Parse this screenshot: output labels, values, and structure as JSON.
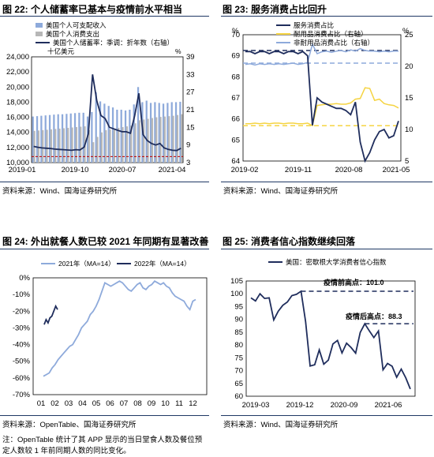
{
  "figures": [
    {
      "label": "图 22:",
      "title": "个人储蓄率已基本与疫情前水平相当",
      "source": "资料来源：Wind、国海证券研究所"
    },
    {
      "label": "图 23:",
      "title": "服务消费占比回升",
      "source": "资料来源：Wind、国海证券研究所"
    },
    {
      "label": "图 24:",
      "title": "外出就餐人数已较 2021 年同期有显著改善",
      "source": "资料来源：OpenTable、国海证券研究所"
    },
    {
      "label": "图 25:",
      "title": "消费者信心指数继续回落",
      "source": "资料来源：Wind、国海证券研究所"
    }
  ],
  "footnote": "注：OpenTable 统计了其 APP 显示的当日堂食人数及餐位预定人数较 1 年前同期人数的同比变化。",
  "colors": {
    "navy": "#1f2d5c",
    "light_blue": "#8eaadb",
    "gray": "#b7b7b7",
    "dashed": "#8eaadb",
    "yellow": "#f5d442",
    "red_dash": "#c00000"
  },
  "chart_data": [
    {
      "type": "bar",
      "title": "个人储蓄率已基本与疫情前水平相当",
      "unit_left": "十亿美元",
      "unit_right": "%",
      "ylim": [
        10000,
        24000
      ],
      "y2lim": [
        3,
        39
      ],
      "yticks": [
        "10,000",
        "12,000",
        "14,000",
        "16,000",
        "18,000",
        "20,000",
        "22,000",
        "24,000"
      ],
      "y2ticks": [
        "3",
        "9",
        "15",
        "21",
        "27",
        "33",
        "39"
      ],
      "xticks": [
        "2019-01",
        "2019-10",
        "2020-07",
        "2021-04"
      ],
      "series": [
        {
          "name": "美国个人可支配收入",
          "values": [
            16100,
            16150,
            16200,
            16250,
            16300,
            16350,
            16400,
            16400,
            16450,
            16500,
            16550,
            16600,
            16600,
            16100,
            16700,
            19300,
            18100,
            17800,
            17500,
            17300,
            17000,
            17000,
            16900,
            17000,
            17700,
            20000,
            18000,
            18200,
            17900,
            18000,
            17900,
            17800,
            17900,
            18000,
            18000,
            18050
          ]
        },
        {
          "name": "美国个人消费支出",
          "values": [
            14200,
            14250,
            14300,
            14350,
            14400,
            14450,
            14500,
            14550,
            14600,
            14650,
            14700,
            14750,
            14800,
            14300,
            12700,
            13400,
            14000,
            14300,
            14400,
            14500,
            14600,
            14700,
            14800,
            14900,
            15200,
            15600,
            15700,
            15800,
            15900,
            16000,
            16050,
            16100,
            16150,
            16200,
            16300,
            16400
          ]
        },
        {
          "name": "美国个人储蓄率：季调：折年数（右轴）",
          "values": [
            8.5,
            8.2,
            8.0,
            7.9,
            7.8,
            7.6,
            7.5,
            7.4,
            7.3,
            7.2,
            7.4,
            7.3,
            8.3,
            12.8,
            33.0,
            24.0,
            19.0,
            18.0,
            15.0,
            14.5,
            14.0,
            13.5,
            13.5,
            13.0,
            19.0,
            26.6,
            12.5,
            10.5,
            9.5,
            9.0,
            9.5,
            8.0,
            7.5,
            7.2,
            7.1,
            7.9
          ]
        }
      ]
    },
    {
      "type": "line",
      "title": "服务消费占比回升",
      "unit_left": "%",
      "unit_right": "%",
      "ylim": [
        64,
        70
      ],
      "y2lim": [
        5,
        25
      ],
      "yticks": [
        "64",
        "65",
        "66",
        "67",
        "68",
        "69",
        "70"
      ],
      "y2ticks": [
        "5",
        "10",
        "15",
        "20",
        "25"
      ],
      "xticks": [
        "2019-02",
        "2019-11",
        "2020-08",
        "2021-05"
      ],
      "series": [
        {
          "name": "服务消费占比",
          "values": [
            69.2,
            69.2,
            69.1,
            69.2,
            69.2,
            69.1,
            69.2,
            69.2,
            69.1,
            69.2,
            69.2,
            69.1,
            69.2,
            69.0,
            65.7,
            67.0,
            66.8,
            66.7,
            66.6,
            66.5,
            66.5,
            66.4,
            66.2,
            66.8,
            64.9,
            64.0,
            64.4,
            65.0,
            65.4,
            65.5,
            65.1,
            65.2,
            65.9
          ]
        },
        {
          "name": "耐用品消费占比（右轴）",
          "values": [
            10.9,
            10.9,
            11.0,
            10.9,
            11.0,
            10.9,
            11.0,
            11.0,
            10.9,
            11.0,
            11.0,
            10.9,
            10.9,
            11.0,
            10.6,
            13.8,
            13.9,
            14.0,
            14.0,
            14.1,
            14.0,
            14.0,
            14.2,
            14.8,
            14.9,
            16.6,
            16.5,
            14.6,
            14.8,
            14.1,
            13.9,
            13.8,
            13.4
          ]
        },
        {
          "name": "非耐用品消费占比（右轴）",
          "values": [
            20.3,
            20.4,
            20.2,
            20.4,
            20.3,
            20.4,
            20.3,
            20.4,
            20.3,
            20.4,
            20.5,
            20.3,
            20.4,
            20.6,
            23.5,
            22.0,
            22.3,
            22.4,
            22.2,
            22.4,
            22.5,
            22.3,
            22.6,
            22.4,
            22.8,
            22.5,
            22.4,
            22.4,
            22.3,
            22.4,
            22.3,
            22.4,
            22.4
          ]
        }
      ]
    },
    {
      "type": "line",
      "title": "外出就餐人数已较 2021 年同期有显著改善",
      "ylim": [
        -70,
        0
      ],
      "yticks": [
        "0%",
        "-10%",
        "-20%",
        "-30%",
        "-40%",
        "-50%",
        "-60%",
        "-70%"
      ],
      "xticks": [
        "01",
        "02",
        "03",
        "04",
        "05",
        "06",
        "07",
        "08",
        "09",
        "10",
        "11",
        "12"
      ],
      "series": [
        {
          "name": "2021年（MA=14）",
          "values": [
            -59,
            -58,
            -57,
            -54,
            -52,
            -49,
            -47,
            -45,
            -43,
            -41,
            -40,
            -37,
            -34,
            -30,
            -28,
            -26,
            -22,
            -20,
            -17,
            -13,
            -8,
            -3,
            -4,
            -5,
            -4,
            -3,
            -2,
            -3,
            -5,
            -7,
            -8,
            -6,
            -4,
            -3,
            -6,
            -7,
            -5,
            -4,
            -2,
            -3,
            -4,
            -3,
            -5,
            -6,
            -9,
            -11,
            -12,
            -13,
            -14,
            -17,
            -19,
            -14,
            -13
          ]
        },
        {
          "name": "2022年（MA=14）",
          "values": [
            -28,
            -25,
            -27,
            -24,
            -23,
            -20,
            -17,
            -19
          ]
        }
      ]
    },
    {
      "type": "line",
      "title": "消费者信心指数继续回落",
      "ylim": [
        60,
        105
      ],
      "yticks": [
        "60",
        "65",
        "70",
        "75",
        "80",
        "85",
        "90",
        "95",
        "100",
        "105"
      ],
      "xticks": [
        "2019-03",
        "2019-12",
        "2020-09",
        "2021-06"
      ],
      "annotations": [
        "疫情前高点：101.0",
        "疫情后高点：88.3"
      ],
      "series": [
        {
          "name": "美国：密歇根大学消费者信心指数",
          "values": [
            98.4,
            97.2,
            100.0,
            98.2,
            98.4,
            89.8,
            93.2,
            95.5,
            96.8,
            99.3,
            99.8,
            101.0,
            89.1,
            71.8,
            72.3,
            78.1,
            72.5,
            74.1,
            80.4,
            81.8,
            76.9,
            80.7,
            79.0,
            76.8,
            84.9,
            88.3,
            85.5,
            82.9,
            85.5,
            70.3,
            72.8,
            71.7,
            67.4,
            70.6,
            67.2,
            62.8
          ]
        }
      ]
    }
  ]
}
